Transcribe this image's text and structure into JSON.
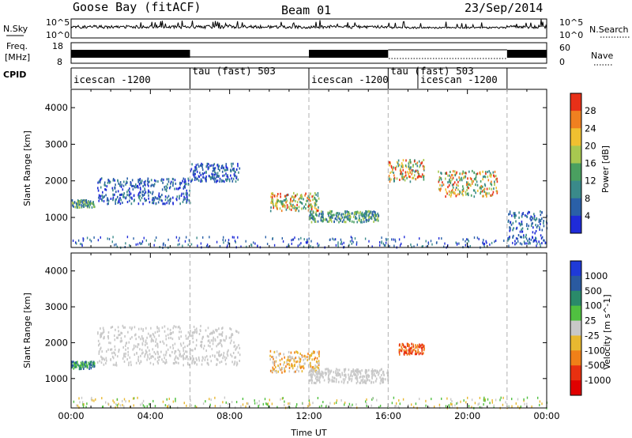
{
  "header": {
    "station": "Goose Bay (fitACF)",
    "beam": "Beam 01",
    "date": "23/Sep/2014"
  },
  "noise_panel": {
    "left_label": "N.Sky",
    "right_label": "N.Search",
    "left_ticks": [
      "10^5",
      "10^0"
    ],
    "right_ticks": [
      "10^5",
      "10^0"
    ]
  },
  "freq_panel": {
    "left_label_line1": "Freq.",
    "left_label_line2": "[MHz]",
    "right_label": "Nave",
    "left_ticks": [
      "18",
      "8"
    ],
    "right_ticks": [
      "60",
      "0"
    ]
  },
  "cpid_panel": {
    "label": "CPID",
    "modes": [
      {
        "name": "icescan -1200",
        "start_hr": 0,
        "end_hr": 6
      },
      {
        "name": "tau (fast) 503",
        "start_hr": 6,
        "end_hr": 12
      },
      {
        "name": "icescan -1200",
        "start_hr": 12,
        "end_hr": 16
      },
      {
        "name": "tau (fast) 503",
        "start_hr": 16,
        "end_hr": 17.5
      },
      {
        "name": "icescan -1200",
        "start_hr": 17.5,
        "end_hr": 22
      },
      {
        "name": "",
        "start_hr": 22,
        "end_hr": 24
      }
    ]
  },
  "chart_data": [
    {
      "type": "heatmap",
      "name": "power",
      "ylabel": "Slant Range [km]",
      "ylim": [
        180,
        4500
      ],
      "yticks": [
        1000,
        2000,
        3000,
        4000
      ],
      "colorbar_label": "Power [dB]",
      "colorbar_ticks": [
        "4",
        "8",
        "12",
        "16",
        "20",
        "24",
        "28"
      ],
      "colors": [
        "#1f2bd8",
        "#2a60a8",
        "#3a8a8a",
        "#4aa060",
        "#a8c850",
        "#f0c030",
        "#f08020",
        "#e83018"
      ],
      "features": [
        {
          "hr": [
            0.0,
            1.2
          ],
          "range_km": [
            1300,
            1500
          ],
          "level": "medium"
        },
        {
          "hr": [
            1.3,
            6.0
          ],
          "range_km": [
            1400,
            2100
          ],
          "level": "low"
        },
        {
          "hr": [
            6.0,
            8.5
          ],
          "range_km": [
            2000,
            2500
          ],
          "level": "low"
        },
        {
          "hr": [
            10.0,
            12.5
          ],
          "range_km": [
            1200,
            1700
          ],
          "level": "high"
        },
        {
          "hr": [
            12.0,
            15.5
          ],
          "range_km": [
            900,
            1200
          ],
          "level": "medium"
        },
        {
          "hr": [
            16.0,
            17.8
          ],
          "range_km": [
            2000,
            2600
          ],
          "level": "high"
        },
        {
          "hr": [
            18.5,
            21.5
          ],
          "range_km": [
            1600,
            2300
          ],
          "level": "high"
        },
        {
          "hr": [
            22.0,
            24.0
          ],
          "range_km": [
            300,
            1200
          ],
          "level": "low"
        }
      ]
    },
    {
      "type": "heatmap",
      "name": "velocity",
      "ylabel": "Slant Range [km]",
      "xlabel": "Time UT",
      "ylim": [
        180,
        4500
      ],
      "yticks": [
        1000,
        2000,
        3000,
        4000
      ],
      "xticks": [
        "00:00",
        "04:00",
        "08:00",
        "12:00",
        "16:00",
        "20:00",
        "00:00"
      ],
      "xtick_hours": [
        0,
        4,
        8,
        12,
        16,
        20,
        24
      ],
      "colorbar_label": "Velocity [m s^-1]",
      "colorbar_ticks": [
        "1000",
        "500",
        "100",
        "25",
        "-25",
        "-100",
        "-500",
        "-1000"
      ],
      "colors": [
        "#1f3ad8",
        "#2a5aa0",
        "#2a8a6a",
        "#50c040",
        "#c8c8c8",
        "#e8b830",
        "#f08018",
        "#e83010",
        "#e00000"
      ],
      "features": [
        {
          "hr": [
            0.0,
            1.2
          ],
          "range_km": [
            1300,
            1500
          ],
          "level": "positive"
        },
        {
          "hr": [
            1.3,
            8.5
          ],
          "range_km": [
            1400,
            2500
          ],
          "level": "near-zero"
        },
        {
          "hr": [
            10.0,
            12.5
          ],
          "range_km": [
            1200,
            1800
          ],
          "level": "negative"
        },
        {
          "hr": [
            16.5,
            17.8
          ],
          "range_km": [
            1700,
            2000
          ],
          "level": "strong-negative"
        },
        {
          "hr": [
            12.0,
            16.0
          ],
          "range_km": [
            900,
            1300
          ],
          "level": "near-zero"
        }
      ]
    }
  ]
}
